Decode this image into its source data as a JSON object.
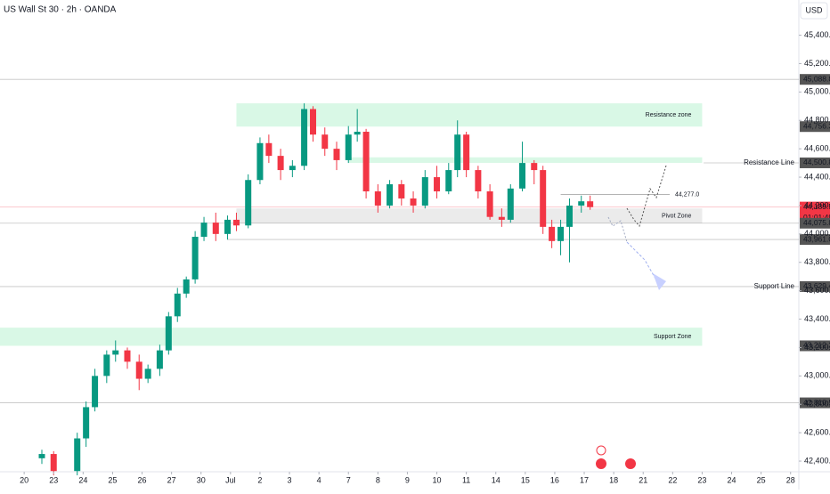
{
  "header": {
    "title": "US Wall St 30 · 2h · OANDA",
    "currency": "USD"
  },
  "chart_data": {
    "type": "candlestick",
    "up_color": "#089981",
    "down_color": "#f23645",
    "grid": false,
    "x": [
      0.6,
      1.0,
      1.8,
      2.1,
      2.4,
      2.8,
      3.1,
      3.5,
      3.9,
      4.2,
      4.6,
      4.9,
      5.2,
      5.5,
      5.8,
      6.1,
      6.5,
      6.9,
      7.2,
      7.6,
      8.0,
      8.3,
      8.7,
      9.1,
      9.5,
      9.8,
      10.2,
      10.6,
      11.0,
      11.3,
      11.6,
      12.0,
      12.4,
      12.8,
      13.2,
      13.6,
      14.0,
      14.4,
      14.7,
      15.0,
      15.4,
      15.8,
      16.2,
      16.5,
      16.9,
      17.3,
      17.6,
      17.9,
      18.2,
      18.5,
      18.9,
      19.2
    ],
    "open": [
      42420,
      42450,
      42330,
      42560,
      42780,
      43000,
      43150,
      43180,
      43100,
      42980,
      43050,
      43180,
      43420,
      43580,
      43680,
      43980,
      44080,
      44000,
      44100,
      44060,
      44380,
      44640,
      44550,
      44450,
      44480,
      44880,
      44700,
      44600,
      44520,
      44700,
      44720,
      44300,
      44200,
      44350,
      44250,
      44200,
      44400,
      44300,
      44450,
      44700,
      44450,
      44300,
      44120,
      44100,
      44320,
      44500,
      44450,
      44050,
      43950,
      44050,
      44200,
      44230
    ],
    "high": [
      42480,
      42470,
      42600,
      42820,
      43050,
      43180,
      43250,
      43200,
      43150,
      43080,
      43220,
      43450,
      43620,
      43700,
      44020,
      44120,
      44150,
      44130,
      44150,
      44420,
      44680,
      44700,
      44600,
      44520,
      44920,
      44900,
      44750,
      44650,
      44760,
      44880,
      44740,
      44350,
      44380,
      44380,
      44300,
      44450,
      44480,
      44500,
      44800,
      44720,
      44480,
      44350,
      44180,
      44350,
      44650,
      44520,
      44480,
      44100,
      44100,
      44250,
      44270,
      44270
    ],
    "low": [
      42380,
      42300,
      42300,
      42500,
      42750,
      42950,
      43100,
      43050,
      42900,
      42950,
      43000,
      43150,
      43380,
      43550,
      43650,
      43950,
      43950,
      43960,
      44020,
      44040,
      44350,
      44500,
      44380,
      44400,
      44450,
      44650,
      44550,
      44450,
      44500,
      44650,
      44250,
      44150,
      44180,
      44200,
      44150,
      44180,
      44250,
      44280,
      44400,
      44400,
      44250,
      44100,
      44050,
      44080,
      44300,
      44350,
      44000,
      43900,
      43850,
      43800,
      44150,
      44170
    ],
    "close": [
      42450,
      42330,
      42560,
      42780,
      43000,
      43150,
      43180,
      43100,
      42980,
      43050,
      43180,
      43420,
      43580,
      43680,
      43980,
      44080,
      44000,
      44100,
      44060,
      44380,
      44640,
      44550,
      44450,
      44480,
      44880,
      44700,
      44600,
      44520,
      44700,
      44720,
      44300,
      44200,
      44350,
      44250,
      44200,
      44400,
      44300,
      44450,
      44700,
      44450,
      44300,
      44120,
      44100,
      44320,
      44500,
      44450,
      44050,
      43950,
      44050,
      44200,
      44230,
      44189.5
    ],
    "xlim": [
      -0.82,
      26.28
    ],
    "xticks": [
      {
        "value": 0,
        "label": "20"
      },
      {
        "value": 1,
        "label": "23"
      },
      {
        "value": 2,
        "label": "24"
      },
      {
        "value": 3,
        "label": "25"
      },
      {
        "value": 4,
        "label": "26"
      },
      {
        "value": 5,
        "label": "27"
      },
      {
        "value": 6,
        "label": "30"
      },
      {
        "value": 7,
        "label": "Jul"
      },
      {
        "value": 8,
        "label": "2"
      },
      {
        "value": 9,
        "label": "3"
      },
      {
        "value": 10,
        "label": "4"
      },
      {
        "value": 11,
        "label": "7"
      },
      {
        "value": 12,
        "label": "8"
      },
      {
        "value": 13,
        "label": "9"
      },
      {
        "value": 14,
        "label": "10"
      },
      {
        "value": 15,
        "label": "11"
      },
      {
        "value": 16,
        "label": "14"
      },
      {
        "value": 17,
        "label": "15"
      },
      {
        "value": 18,
        "label": "16"
      },
      {
        "value": 19,
        "label": "17"
      },
      {
        "value": 20,
        "label": "18"
      },
      {
        "value": 21,
        "label": "21"
      },
      {
        "value": 22,
        "label": "22"
      },
      {
        "value": 23,
        "label": "23"
      },
      {
        "value": 24,
        "label": "24"
      },
      {
        "value": 25,
        "label": "25"
      },
      {
        "value": 26,
        "label": "28"
      }
    ],
    "ylim": [
      42325,
      45648
    ],
    "yticks": [
      {
        "value": 42400,
        "label": "42,400.0"
      },
      {
        "value": 42600,
        "label": "42,600.0"
      },
      {
        "value": 42800,
        "label": "42,800.0"
      },
      {
        "value": 43000,
        "label": "43,000.0"
      },
      {
        "value": 43200,
        "label": "43,200.0"
      },
      {
        "value": 43400,
        "label": "43,400.0"
      },
      {
        "value": 43600,
        "label": "43,600.0"
      },
      {
        "value": 43800,
        "label": "43,800.0"
      },
      {
        "value": 44000,
        "label": "44,000.0"
      },
      {
        "value": 44200,
        "label": "44,200.0"
      },
      {
        "value": 44400,
        "label": "44,400.0"
      },
      {
        "value": 44600,
        "label": "44,600.0"
      },
      {
        "value": 44800,
        "label": "44,800.0"
      },
      {
        "value": 45000,
        "label": "45,000.0"
      },
      {
        "value": 45200,
        "label": "45,200.0"
      },
      {
        "value": 45400,
        "label": "45,400.0"
      }
    ],
    "zones": [
      {
        "name": "Resistance zone",
        "from": 44756.3,
        "to": 44920,
        "x_from": 7.2,
        "x_to": 23.0,
        "color": "#d9f8e6"
      },
      {
        "from": 44500.8,
        "to": 44540,
        "x_from": 11.0,
        "x_to": 23.0,
        "color": "#d9f8e6"
      },
      {
        "name": "Pivot Zone",
        "from": 44075.8,
        "to": 44180,
        "x_from": 7.2,
        "x_to": 23.0,
        "color": "#ebebeb"
      },
      {
        "name": "Support Zone",
        "from": 43212.2,
        "to": 43340,
        "x_from": -0.82,
        "x_to": 23.0,
        "color": "#d9f8e6"
      }
    ],
    "levels": [
      {
        "value": 45088.8,
        "label": "45,088.8",
        "color": "#555555",
        "line_from": -0.82
      },
      {
        "value": 44756.3,
        "label": "44,756.3",
        "color": "#555555"
      },
      {
        "value": 44500.8,
        "label": "44,500.8",
        "color": "#555555",
        "line_from": 23.05,
        "name": "Resistance Line"
      },
      {
        "value": 44189.5,
        "label": "44,189.5",
        "color": "#f23645",
        "line_from": -0.82,
        "countdown": "01:01:49"
      },
      {
        "value": 44075.8,
        "label": "44,075.8",
        "color": "#555555",
        "line_from": -0.82
      },
      {
        "value": 43961.0,
        "label": "43,961.0",
        "color": "#555555",
        "line_from": 6.9
      },
      {
        "value": 43629.4,
        "label": "43,629.4",
        "color": "#555555",
        "line_from": -0.82,
        "name": "Support Line"
      },
      {
        "value": 43212.2,
        "label": "43,212.2",
        "color": "#555555"
      },
      {
        "value": 42810.5,
        "label": "42,810.5",
        "color": "#555555",
        "line_from": -0.82
      }
    ],
    "annotations": [
      {
        "value": 44277.0,
        "label": "44,277.0",
        "x_from": 18.2,
        "x_to": 21.9
      }
    ]
  }
}
